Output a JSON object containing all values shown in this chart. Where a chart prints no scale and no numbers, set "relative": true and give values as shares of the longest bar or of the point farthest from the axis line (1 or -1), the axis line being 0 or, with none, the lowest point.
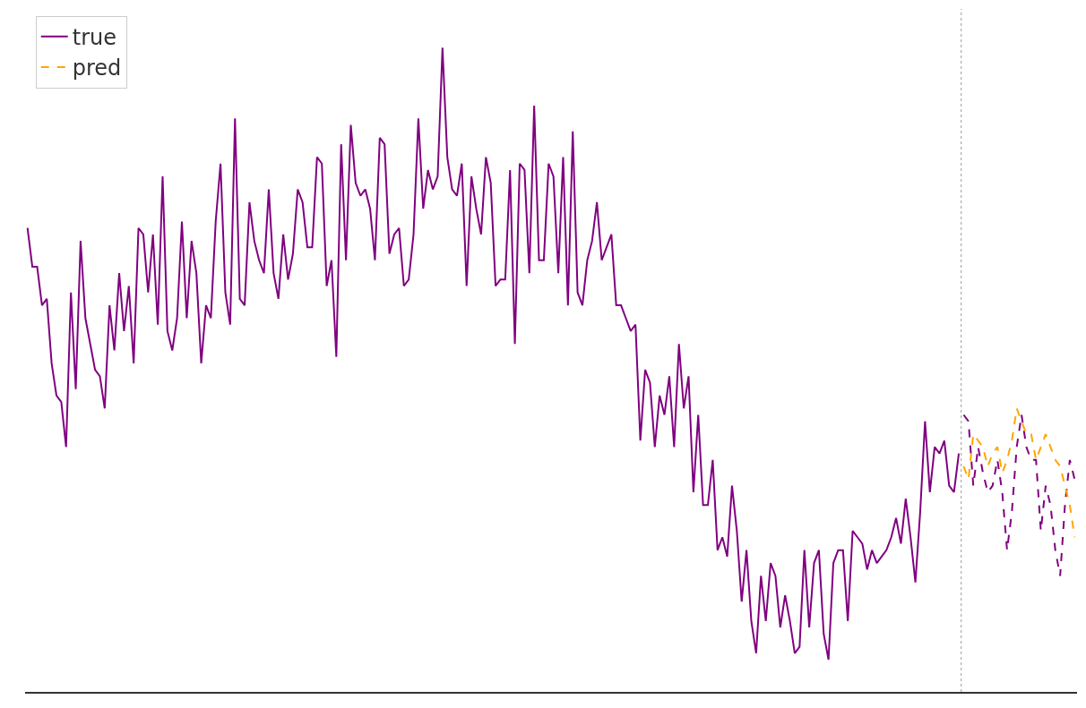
{
  "chart_data": {
    "type": "line",
    "relative": true,
    "legend": "top left",
    "marker": "none",
    "categories": [
      null,
      null,
      null,
      null,
      null,
      null,
      null,
      null,
      null,
      null,
      null,
      null,
      null,
      null,
      null,
      null,
      null,
      null,
      null,
      null,
      null,
      null,
      null,
      null,
      null,
      null,
      null,
      null,
      null,
      null,
      null,
      null,
      null,
      null,
      null,
      null,
      null,
      null,
      null,
      null,
      null,
      null,
      null,
      null,
      null,
      null,
      null,
      null,
      null,
      null,
      null,
      null,
      null,
      null,
      null,
      null,
      null,
      null,
      null,
      null,
      null,
      null,
      null,
      null,
      null,
      null,
      null,
      null,
      null,
      null,
      null,
      null,
      null,
      null,
      null,
      null,
      null,
      null,
      null,
      null,
      null,
      null,
      null,
      null,
      null,
      null,
      null,
      null,
      null,
      null,
      null,
      null,
      null,
      null,
      null,
      null,
      null,
      null,
      null,
      null,
      null,
      null,
      null,
      null,
      null,
      null,
      null,
      null,
      null,
      null,
      null,
      null,
      null,
      null,
      null,
      null,
      null,
      null,
      null,
      null,
      null,
      null,
      null,
      null,
      null,
      null,
      null,
      null,
      null,
      null,
      null,
      null,
      null,
      null,
      null,
      null,
      null,
      null,
      null,
      null,
      null,
      null,
      null,
      null,
      null,
      null,
      null,
      null,
      null,
      null,
      null,
      null,
      null,
      null,
      null,
      null,
      null,
      null,
      null,
      null,
      null,
      null,
      null,
      null,
      null,
      null,
      null,
      null,
      null,
      null,
      null,
      null,
      null,
      null,
      null,
      null,
      null,
      null,
      null,
      null,
      null,
      null,
      null,
      null,
      null,
      null,
      null,
      null,
      null,
      null,
      null,
      null,
      null,
      null,
      null,
      null,
      null,
      null,
      null,
      null,
      null,
      null,
      null,
      null,
      null,
      null,
      null,
      null,
      null,
      null,
      null,
      null,
      null,
      null,
      null,
      null,
      null,
      null
    ],
    "series": [
      {
        "name": "true",
        "color": "#800080",
        "line_style": "solid",
        "values": [
          0.72,
          0.66,
          0.66,
          0.6,
          0.61,
          0.51,
          0.46,
          0.45,
          0.38,
          0.62,
          0.47,
          0.7,
          0.58,
          0.54,
          0.5,
          0.49,
          0.44,
          0.6,
          0.53,
          0.65,
          0.56,
          0.63,
          0.51,
          0.72,
          0.71,
          0.62,
          0.71,
          0.57,
          0.8,
          0.56,
          0.53,
          0.58,
          0.73,
          0.58,
          0.7,
          0.65,
          0.51,
          0.6,
          0.58,
          0.73,
          0.82,
          0.62,
          0.57,
          0.89,
          0.61,
          0.6,
          0.76,
          0.7,
          0.67,
          0.65,
          0.78,
          0.65,
          0.61,
          0.71,
          0.64,
          0.68,
          0.78,
          0.76,
          0.69,
          0.69,
          0.83,
          0.82,
          0.63,
          0.67,
          0.52,
          0.85,
          0.67,
          0.88,
          0.79,
          0.77,
          0.78,
          0.75,
          0.67,
          0.86,
          0.85,
          0.68,
          0.71,
          0.72,
          0.63,
          0.64,
          0.71,
          0.89,
          0.75,
          0.81,
          0.78,
          0.8,
          1,
          0.83,
          0.78,
          0.77,
          0.82,
          0.63,
          0.8,
          0.75,
          0.71,
          0.83,
          0.79,
          0.63,
          0.64,
          0.64,
          0.81,
          0.54,
          0.82,
          0.81,
          0.65,
          0.91,
          0.67,
          0.67,
          0.82,
          0.8,
          0.65,
          0.83,
          0.6,
          0.87,
          0.62,
          0.6,
          0.67,
          0.7,
          0.76,
          0.67,
          0.69,
          0.71,
          0.6,
          0.6,
          0.58,
          0.56,
          0.57,
          0.39,
          0.5,
          0.48,
          0.38,
          0.46,
          0.43,
          0.49,
          0.38,
          0.54,
          0.44,
          0.49,
          0.31,
          0.43,
          0.29,
          0.29,
          0.36,
          0.22,
          0.24,
          0.21,
          0.32,
          0.25,
          0.14,
          0.22,
          0.11,
          0.06,
          0.18,
          0.11,
          0.2,
          0.18,
          0.1,
          0.15,
          0.11,
          0.06,
          0.07,
          0.22,
          0.1,
          0.2,
          0.22,
          0.09,
          0.05,
          0.2,
          0.22,
          0.22,
          0.11,
          0.25,
          0.24,
          0.23,
          0.19,
          0.22,
          0.2,
          0.21,
          0.22,
          0.24,
          0.27,
          0.23,
          0.3,
          0.24,
          0.17,
          0.28,
          0.42,
          0.31,
          0.38,
          0.37,
          0.39,
          0.32,
          0.31,
          0.37,
          null,
          null,
          null,
          null,
          null,
          null,
          null,
          null,
          null,
          null,
          null,
          null,
          null,
          null,
          null,
          null,
          null,
          null,
          null,
          null,
          null,
          null,
          null,
          null
        ]
      },
      {
        "color": "#800080",
        "line_style": "dashed",
        "values": [
          null,
          null,
          null,
          null,
          null,
          null,
          null,
          null,
          null,
          null,
          null,
          null,
          null,
          null,
          null,
          null,
          null,
          null,
          null,
          null,
          null,
          null,
          null,
          null,
          null,
          null,
          null,
          null,
          null,
          null,
          null,
          null,
          null,
          null,
          null,
          null,
          null,
          null,
          null,
          null,
          null,
          null,
          null,
          null,
          null,
          null,
          null,
          null,
          null,
          null,
          null,
          null,
          null,
          null,
          null,
          null,
          null,
          null,
          null,
          null,
          null,
          null,
          null,
          null,
          null,
          null,
          null,
          null,
          null,
          null,
          null,
          null,
          null,
          null,
          null,
          null,
          null,
          null,
          null,
          null,
          null,
          null,
          null,
          null,
          null,
          null,
          null,
          null,
          null,
          null,
          null,
          null,
          null,
          null,
          null,
          null,
          null,
          null,
          null,
          null,
          null,
          null,
          null,
          null,
          null,
          null,
          null,
          null,
          null,
          null,
          null,
          null,
          null,
          null,
          null,
          null,
          null,
          null,
          null,
          null,
          null,
          null,
          null,
          null,
          null,
          null,
          null,
          null,
          null,
          null,
          null,
          null,
          null,
          null,
          null,
          null,
          null,
          null,
          null,
          null,
          null,
          null,
          null,
          null,
          null,
          null,
          null,
          null,
          null,
          null,
          null,
          null,
          null,
          null,
          null,
          null,
          null,
          null,
          null,
          null,
          null,
          null,
          null,
          null,
          null,
          null,
          null,
          null,
          null,
          null,
          null,
          null,
          null,
          null,
          null,
          null,
          null,
          null,
          null,
          null,
          null,
          null,
          null,
          null,
          null,
          null,
          null,
          null,
          null,
          null,
          null,
          null,
          null,
          null,
          0.43,
          0.42,
          0.32,
          0.38,
          0.34,
          0.31,
          0.32,
          0.36,
          0.31,
          0.22,
          0.28,
          0.38,
          0.43,
          0.38,
          0.36,
          0.36,
          0.25,
          0.32,
          0.29,
          0.22,
          0.18,
          0.29,
          0.36,
          0.33
        ]
      },
      {
        "name": "pred",
        "color": "#ffa500",
        "line_style": "dashed",
        "values": [
          null,
          null,
          null,
          null,
          null,
          null,
          null,
          null,
          null,
          null,
          null,
          null,
          null,
          null,
          null,
          null,
          null,
          null,
          null,
          null,
          null,
          null,
          null,
          null,
          null,
          null,
          null,
          null,
          null,
          null,
          null,
          null,
          null,
          null,
          null,
          null,
          null,
          null,
          null,
          null,
          null,
          null,
          null,
          null,
          null,
          null,
          null,
          null,
          null,
          null,
          null,
          null,
          null,
          null,
          null,
          null,
          null,
          null,
          null,
          null,
          null,
          null,
          null,
          null,
          null,
          null,
          null,
          null,
          null,
          null,
          null,
          null,
          null,
          null,
          null,
          null,
          null,
          null,
          null,
          null,
          null,
          null,
          null,
          null,
          null,
          null,
          null,
          null,
          null,
          null,
          null,
          null,
          null,
          null,
          null,
          null,
          null,
          null,
          null,
          null,
          null,
          null,
          null,
          null,
          null,
          null,
          null,
          null,
          null,
          null,
          null,
          null,
          null,
          null,
          null,
          null,
          null,
          null,
          null,
          null,
          null,
          null,
          null,
          null,
          null,
          null,
          null,
          null,
          null,
          null,
          null,
          null,
          null,
          null,
          null,
          null,
          null,
          null,
          null,
          null,
          null,
          null,
          null,
          null,
          null,
          null,
          null,
          null,
          null,
          null,
          null,
          null,
          null,
          null,
          null,
          null,
          null,
          null,
          null,
          null,
          null,
          null,
          null,
          null,
          null,
          null,
          null,
          null,
          null,
          null,
          null,
          null,
          null,
          null,
          null,
          null,
          null,
          null,
          null,
          null,
          null,
          null,
          null,
          null,
          null,
          null,
          null,
          null,
          null,
          null,
          null,
          null,
          null,
          null,
          0.35,
          0.33,
          0.4,
          0.39,
          0.38,
          0.35,
          0.37,
          0.38,
          0.34,
          0.36,
          0.39,
          0.44,
          0.42,
          0.4,
          0.4,
          0.36,
          0.38,
          0.4,
          0.38,
          0.36,
          0.35,
          0.32,
          0.29,
          0.24
        ]
      }
    ]
  }
}
